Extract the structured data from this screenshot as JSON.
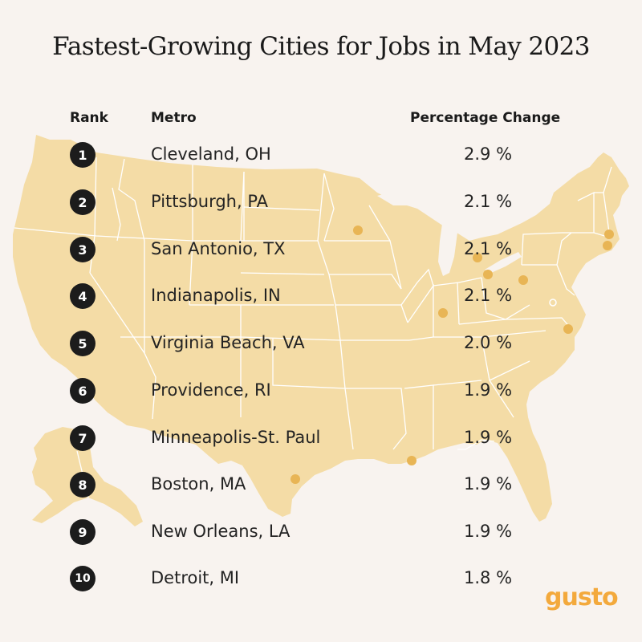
{
  "title": "Fastest-Growing Cities for Jobs in May 2023",
  "headers": {
    "rank": "Rank",
    "metro": "Metro",
    "change": "Percentage Change"
  },
  "rows": [
    {
      "rank": "1",
      "metro": "Cleveland, OH",
      "change": "2.9 %"
    },
    {
      "rank": "2",
      "metro": "Pittsburgh, PA",
      "change": "2.1 %"
    },
    {
      "rank": "3",
      "metro": "San Antonio, TX",
      "change": "2.1 %"
    },
    {
      "rank": "4",
      "metro": "Indianapolis, IN",
      "change": "2.1 %"
    },
    {
      "rank": "5",
      "metro": "Virginia Beach, VA",
      "change": "2.0 %"
    },
    {
      "rank": "6",
      "metro": "Providence, RI",
      "change": "1.9 %"
    },
    {
      "rank": "7",
      "metro": "Minneapolis-St. Paul",
      "change": "1.9 %"
    },
    {
      "rank": "8",
      "metro": "Boston, MA",
      "change": "1.9 %"
    },
    {
      "rank": "9",
      "metro": "New Orleans, LA",
      "change": "1.9 %"
    },
    {
      "rank": "10",
      "metro": "Detroit, MI",
      "change": "1.8 %"
    }
  ],
  "map": {
    "markers": [
      "minneapolis-st-paul",
      "detroit",
      "cleveland",
      "pittsburgh",
      "indianapolis",
      "boston",
      "providence",
      "virginia-beach",
      "new-orleans",
      "san-antonio"
    ]
  },
  "logo": "gusto",
  "colors": {
    "background": "#f8f3ef",
    "land": "#f4dca6",
    "state_border": "#ffffff",
    "marker": "#e8b555",
    "badge": "#1c1c1c",
    "logo": "#f3a93c"
  }
}
